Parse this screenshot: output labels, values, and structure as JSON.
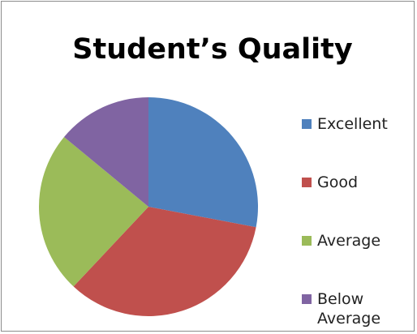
{
  "chart_data": {
    "type": "pie",
    "title": "Student’s Quality",
    "categories": [
      "Excellent",
      "Good",
      "Average",
      "Below Average"
    ],
    "values": [
      28,
      34,
      24,
      14
    ],
    "colors": [
      "#4f81bd",
      "#c0504d",
      "#9bbb59",
      "#8064a2"
    ],
    "legend": "right"
  }
}
